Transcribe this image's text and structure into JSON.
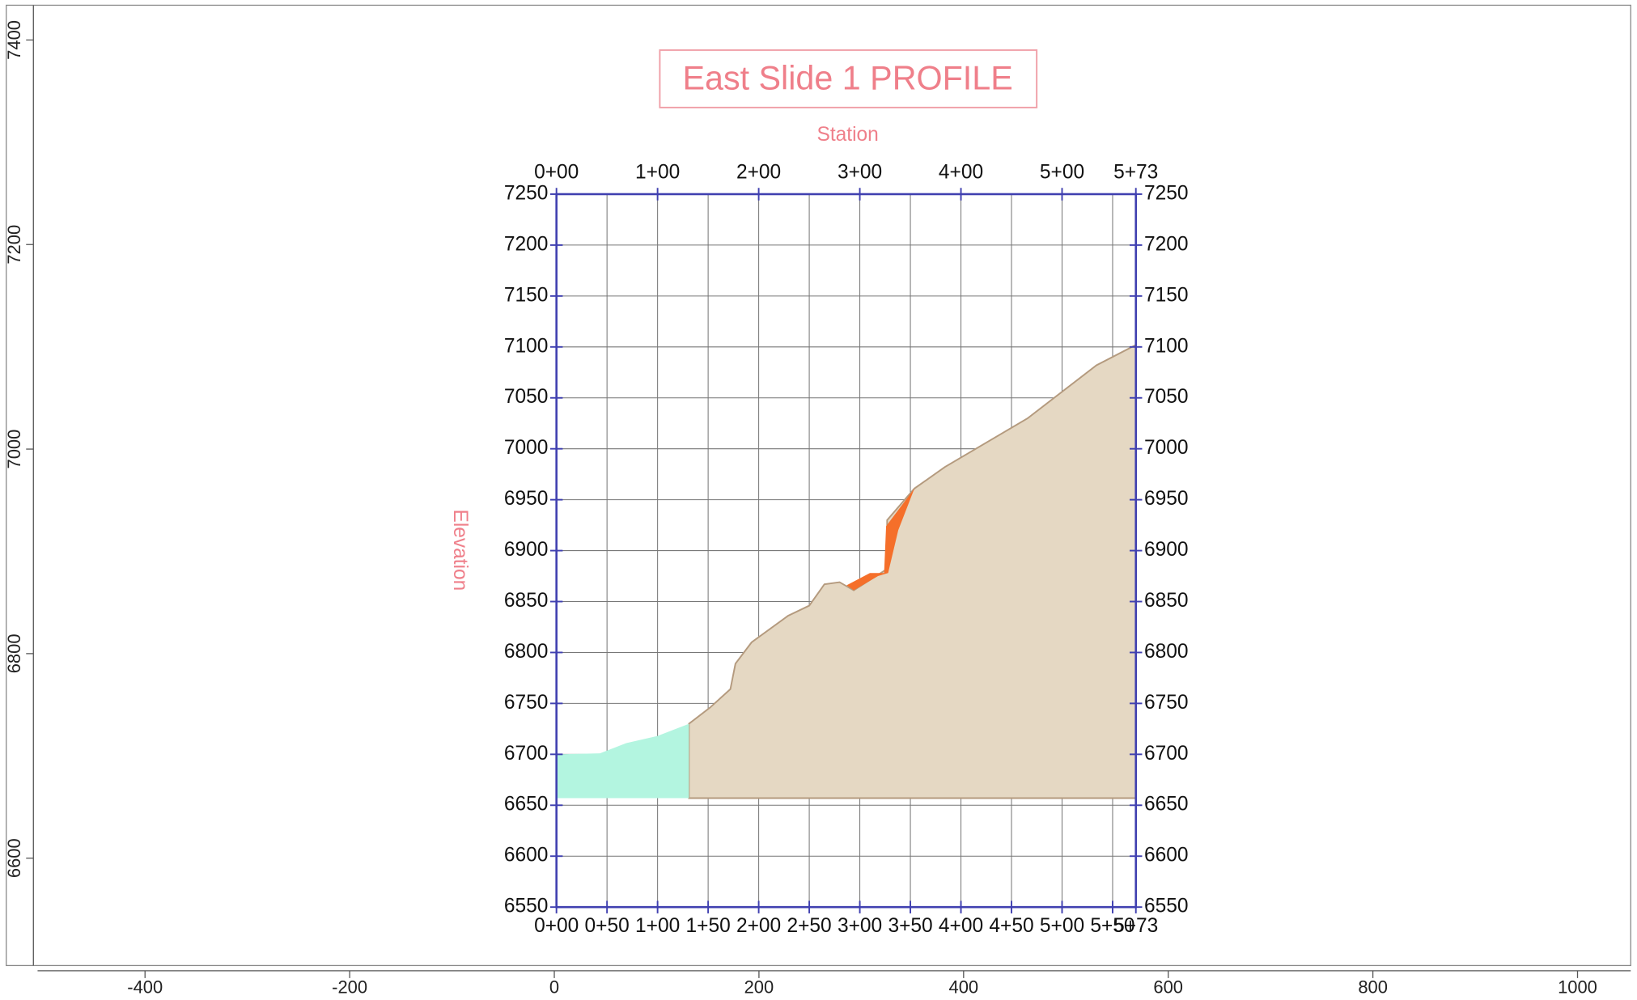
{
  "chart_data": [
    {
      "type": "area",
      "title": "East Slide 1 PROFILE",
      "x_label": "Station",
      "y_label": "Elevation",
      "xlim": [
        0,
        573
      ],
      "ylim": [
        6550,
        7250
      ],
      "xticks": [
        {
          "value": 0,
          "label": "0+00"
        },
        {
          "value": 50,
          "label": "0+50"
        },
        {
          "value": 100,
          "label": "1+00"
        },
        {
          "value": 150,
          "label": "1+50"
        },
        {
          "value": 200,
          "label": "2+00"
        },
        {
          "value": 250,
          "label": "2+50"
        },
        {
          "value": 300,
          "label": "3+00"
        },
        {
          "value": 350,
          "label": "3+50"
        },
        {
          "value": 400,
          "label": "4+00"
        },
        {
          "value": 450,
          "label": "4+50"
        },
        {
          "value": 500,
          "label": "5+00"
        },
        {
          "value": 550,
          "label": "5+50"
        },
        {
          "value": 573,
          "label": "5+73"
        }
      ],
      "x2ticks": [
        {
          "value": 0,
          "label": "0+00"
        },
        {
          "value": 100,
          "label": "1+00"
        },
        {
          "value": 200,
          "label": "2+00"
        },
        {
          "value": 300,
          "label": "3+00"
        },
        {
          "value": 400,
          "label": "4+00"
        },
        {
          "value": 500,
          "label": "5+00"
        },
        {
          "value": 573,
          "label": "5+73"
        }
      ],
      "yticks": [
        6550,
        6600,
        6650,
        6700,
        6750,
        6800,
        6850,
        6900,
        6950,
        7000,
        7050,
        7100,
        7150,
        7200,
        7250
      ],
      "grid": true,
      "series": [
        {
          "color": "#e5d8c3",
          "x": [
            131,
            152,
            172,
            177,
            193,
            229,
            250,
            265,
            280,
            294,
            327,
            327,
            354,
            384,
            466,
            534,
            573,
            573,
            131
          ],
          "values": [
            6730,
            6746,
            6764,
            6789,
            6810,
            6836,
            6846,
            6867,
            6869,
            6861,
            6882,
            6930,
            6961,
            6982,
            7030,
            7082,
            7102,
            6657,
            6657
          ]
        },
        {
          "color": "#b3f5e0",
          "x": [
            0,
            43,
            69,
            100,
            131,
            131,
            0
          ],
          "values": [
            6700,
            6701,
            6711,
            6718,
            6730,
            6657,
            6657
          ]
        },
        {
          "color": "#f56f2a",
          "x": [
            287,
            310,
            324,
            326,
            354,
            338,
            328,
            318,
            294
          ],
          "values": [
            6866,
            6878,
            6878,
            6924,
            6961,
            6920,
            6878,
            6875,
            6861
          ]
        }
      ]
    },
    {
      "type": "axes",
      "xlim": [
        -505,
        1052
      ],
      "ylim": [
        6495,
        7434
      ],
      "xticks": [
        -400,
        -200,
        0,
        200,
        400,
        600,
        800,
        1000
      ],
      "yticks": [
        6600,
        6800,
        7000,
        7200,
        7400
      ]
    }
  ]
}
